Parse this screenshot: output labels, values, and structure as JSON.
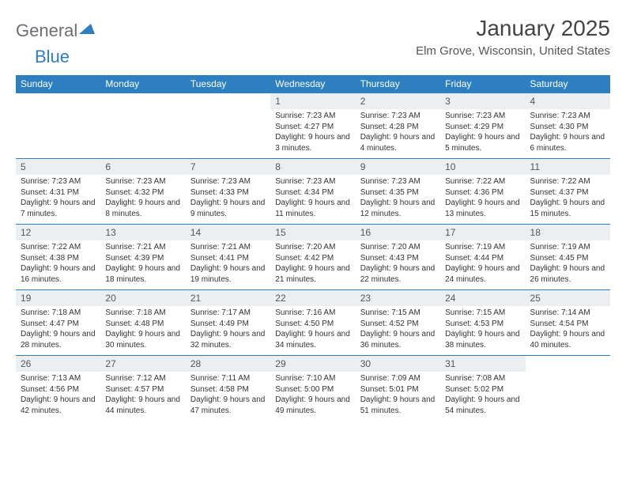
{
  "logo": {
    "text1": "General",
    "text2": "Blue"
  },
  "title": "January 2025",
  "location": "Elm Grove, Wisconsin, United States",
  "colors": {
    "header_bg": "#2d7fc1",
    "header_fg": "#ffffff",
    "daynum_bg": "#eceff1",
    "rule": "#2d7fc1",
    "text": "#333333",
    "logo_gray": "#6b6f73",
    "logo_blue": "#2d7fc1"
  },
  "day_names": [
    "Sunday",
    "Monday",
    "Tuesday",
    "Wednesday",
    "Thursday",
    "Friday",
    "Saturday"
  ],
  "grid": [
    [
      null,
      null,
      null,
      {
        "n": "1",
        "sr": "7:23 AM",
        "ss": "4:27 PM",
        "dl": "9 hours and 3 minutes."
      },
      {
        "n": "2",
        "sr": "7:23 AM",
        "ss": "4:28 PM",
        "dl": "9 hours and 4 minutes."
      },
      {
        "n": "3",
        "sr": "7:23 AM",
        "ss": "4:29 PM",
        "dl": "9 hours and 5 minutes."
      },
      {
        "n": "4",
        "sr": "7:23 AM",
        "ss": "4:30 PM",
        "dl": "9 hours and 6 minutes."
      }
    ],
    [
      {
        "n": "5",
        "sr": "7:23 AM",
        "ss": "4:31 PM",
        "dl": "9 hours and 7 minutes."
      },
      {
        "n": "6",
        "sr": "7:23 AM",
        "ss": "4:32 PM",
        "dl": "9 hours and 8 minutes."
      },
      {
        "n": "7",
        "sr": "7:23 AM",
        "ss": "4:33 PM",
        "dl": "9 hours and 9 minutes."
      },
      {
        "n": "8",
        "sr": "7:23 AM",
        "ss": "4:34 PM",
        "dl": "9 hours and 11 minutes."
      },
      {
        "n": "9",
        "sr": "7:23 AM",
        "ss": "4:35 PM",
        "dl": "9 hours and 12 minutes."
      },
      {
        "n": "10",
        "sr": "7:22 AM",
        "ss": "4:36 PM",
        "dl": "9 hours and 13 minutes."
      },
      {
        "n": "11",
        "sr": "7:22 AM",
        "ss": "4:37 PM",
        "dl": "9 hours and 15 minutes."
      }
    ],
    [
      {
        "n": "12",
        "sr": "7:22 AM",
        "ss": "4:38 PM",
        "dl": "9 hours and 16 minutes."
      },
      {
        "n": "13",
        "sr": "7:21 AM",
        "ss": "4:39 PM",
        "dl": "9 hours and 18 minutes."
      },
      {
        "n": "14",
        "sr": "7:21 AM",
        "ss": "4:41 PM",
        "dl": "9 hours and 19 minutes."
      },
      {
        "n": "15",
        "sr": "7:20 AM",
        "ss": "4:42 PM",
        "dl": "9 hours and 21 minutes."
      },
      {
        "n": "16",
        "sr": "7:20 AM",
        "ss": "4:43 PM",
        "dl": "9 hours and 22 minutes."
      },
      {
        "n": "17",
        "sr": "7:19 AM",
        "ss": "4:44 PM",
        "dl": "9 hours and 24 minutes."
      },
      {
        "n": "18",
        "sr": "7:19 AM",
        "ss": "4:45 PM",
        "dl": "9 hours and 26 minutes."
      }
    ],
    [
      {
        "n": "19",
        "sr": "7:18 AM",
        "ss": "4:47 PM",
        "dl": "9 hours and 28 minutes."
      },
      {
        "n": "20",
        "sr": "7:18 AM",
        "ss": "4:48 PM",
        "dl": "9 hours and 30 minutes."
      },
      {
        "n": "21",
        "sr": "7:17 AM",
        "ss": "4:49 PM",
        "dl": "9 hours and 32 minutes."
      },
      {
        "n": "22",
        "sr": "7:16 AM",
        "ss": "4:50 PM",
        "dl": "9 hours and 34 minutes."
      },
      {
        "n": "23",
        "sr": "7:15 AM",
        "ss": "4:52 PM",
        "dl": "9 hours and 36 minutes."
      },
      {
        "n": "24",
        "sr": "7:15 AM",
        "ss": "4:53 PM",
        "dl": "9 hours and 38 minutes."
      },
      {
        "n": "25",
        "sr": "7:14 AM",
        "ss": "4:54 PM",
        "dl": "9 hours and 40 minutes."
      }
    ],
    [
      {
        "n": "26",
        "sr": "7:13 AM",
        "ss": "4:56 PM",
        "dl": "9 hours and 42 minutes."
      },
      {
        "n": "27",
        "sr": "7:12 AM",
        "ss": "4:57 PM",
        "dl": "9 hours and 44 minutes."
      },
      {
        "n": "28",
        "sr": "7:11 AM",
        "ss": "4:58 PM",
        "dl": "9 hours and 47 minutes."
      },
      {
        "n": "29",
        "sr": "7:10 AM",
        "ss": "5:00 PM",
        "dl": "9 hours and 49 minutes."
      },
      {
        "n": "30",
        "sr": "7:09 AM",
        "ss": "5:01 PM",
        "dl": "9 hours and 51 minutes."
      },
      {
        "n": "31",
        "sr": "7:08 AM",
        "ss": "5:02 PM",
        "dl": "9 hours and 54 minutes."
      },
      null
    ]
  ],
  "labels": {
    "sunrise": "Sunrise:",
    "sunset": "Sunset:",
    "daylight": "Daylight:"
  }
}
